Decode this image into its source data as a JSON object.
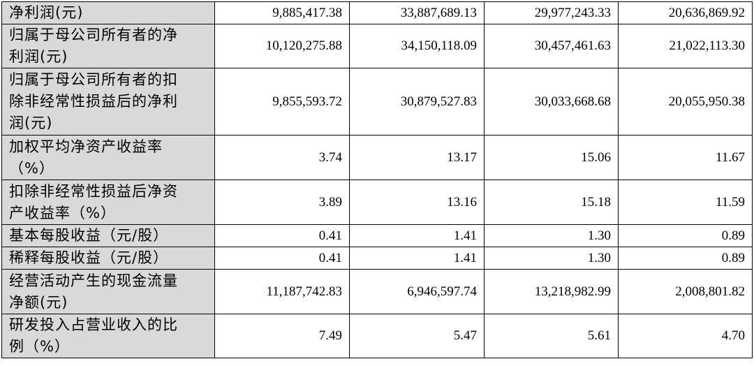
{
  "rows": [
    {
      "label": "净利润(元)",
      "values": [
        "9,885,417.38",
        "33,887,689.13",
        "29,977,243.33",
        "20,636,869.92"
      ]
    },
    {
      "label": "归属于母公司所有者的净\n利润(元)",
      "values": [
        "10,120,275.88",
        "34,150,118.09",
        "30,457,461.63",
        "21,022,113.30"
      ]
    },
    {
      "label": "归属于母公司所有者的扣\n除非经常性损益后的净利\n润(元)",
      "values": [
        "9,855,593.72",
        "30,879,527.83",
        "30,033,668.68",
        "20,055,950.38"
      ]
    },
    {
      "label": "加权平均净资产收益率\n（%）",
      "values": [
        "3.74",
        "13.17",
        "15.06",
        "11.67"
      ]
    },
    {
      "label": "扣除非经常性损益后净资\n产收益率（%）",
      "values": [
        "3.89",
        "13.16",
        "15.18",
        "11.59"
      ]
    },
    {
      "label": "基本每股收益（元/股）",
      "values": [
        "0.41",
        "1.41",
        "1.30",
        "0.89"
      ]
    },
    {
      "label": "稀释每股收益（元/股）",
      "values": [
        "0.41",
        "1.41",
        "1.30",
        "0.89"
      ]
    },
    {
      "label": "经营活动产生的现金流量\n净额(元)",
      "values": [
        "11,187,742.83",
        "6,946,597.74",
        "13,218,982.99",
        "2,008,801.82"
      ]
    },
    {
      "label": "研发投入占营业收入的比\n例（%）",
      "values": [
        "7.49",
        "5.47",
        "5.61",
        "4.70"
      ]
    }
  ]
}
